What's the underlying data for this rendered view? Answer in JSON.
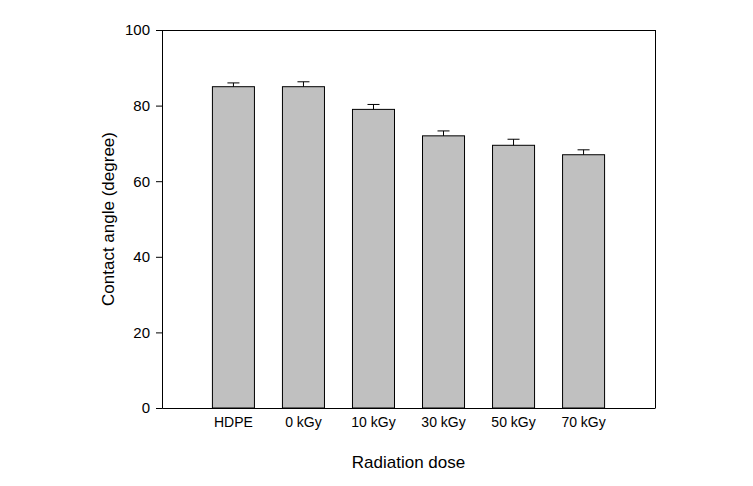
{
  "chart_data": {
    "type": "bar",
    "xlabel": "Radiation dose",
    "ylabel": "Contact angle (degree)",
    "categories": [
      "HDPE",
      "0 kGy",
      "10 kGy",
      "30 kGy",
      "50 kGy",
      "70 kGy"
    ],
    "values": [
      85,
      85,
      79,
      72,
      69.5,
      67
    ],
    "errors": [
      1.0,
      1.3,
      1.3,
      1.3,
      1.6,
      1.3
    ],
    "color": "#c0c0c0",
    "ylim": [
      0,
      100
    ],
    "yticks": [
      0,
      20,
      40,
      60,
      80,
      100
    ],
    "grid": false
  }
}
